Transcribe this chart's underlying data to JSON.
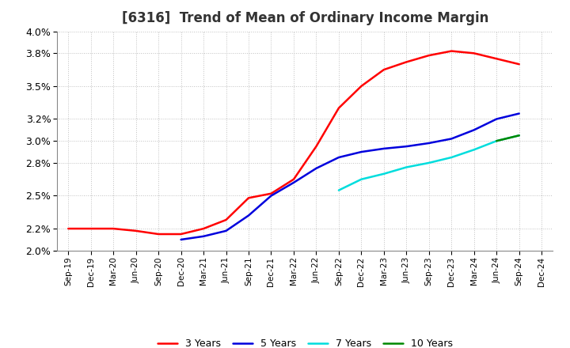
{
  "title": "[6316]  Trend of Mean of Ordinary Income Margin",
  "ylim": [
    0.02,
    0.04
  ],
  "ytick_positions": [
    0.02,
    0.022,
    0.025,
    0.028,
    0.03,
    0.032,
    0.035,
    0.038,
    0.04
  ],
  "ytick_labels": [
    "2.0%",
    "2.2%",
    "2.5%",
    "2.8%",
    "3.0%",
    "3.2%",
    "3.5%",
    "3.8%",
    "4.0%"
  ],
  "x_labels": [
    "Sep-19",
    "Dec-19",
    "Mar-20",
    "Jun-20",
    "Sep-20",
    "Dec-20",
    "Mar-21",
    "Jun-21",
    "Sep-21",
    "Dec-21",
    "Mar-22",
    "Jun-22",
    "Sep-22",
    "Dec-22",
    "Mar-23",
    "Jun-23",
    "Sep-23",
    "Dec-23",
    "Mar-24",
    "Jun-24",
    "Sep-24",
    "Dec-24"
  ],
  "series": {
    "3 Years": {
      "color": "#ff0000",
      "values": [
        0.022,
        0.022,
        0.022,
        0.0218,
        0.0215,
        0.0215,
        0.022,
        0.0228,
        0.0248,
        0.0252,
        0.0265,
        0.0295,
        0.033,
        0.035,
        0.0365,
        0.0372,
        0.0378,
        0.0382,
        0.038,
        0.0375,
        0.037,
        null
      ]
    },
    "5 Years": {
      "color": "#0000dd",
      "values": [
        null,
        null,
        null,
        null,
        null,
        0.021,
        0.0213,
        0.0218,
        0.0232,
        0.025,
        0.0262,
        0.0275,
        0.0285,
        0.029,
        0.0293,
        0.0295,
        0.0298,
        0.0302,
        0.031,
        0.032,
        0.0325,
        null
      ]
    },
    "7 Years": {
      "color": "#00dddd",
      "values": [
        null,
        null,
        null,
        null,
        null,
        null,
        null,
        null,
        null,
        null,
        null,
        null,
        0.0255,
        0.0265,
        0.027,
        0.0276,
        0.028,
        0.0285,
        0.0292,
        0.03,
        0.0305,
        null
      ]
    },
    "10 Years": {
      "color": "#008800",
      "values": [
        null,
        null,
        null,
        null,
        null,
        null,
        null,
        null,
        null,
        null,
        null,
        null,
        null,
        null,
        null,
        null,
        null,
        null,
        null,
        0.03,
        0.0305,
        null
      ]
    }
  },
  "background_color": "#ffffff",
  "grid_color": "#c0c0c0",
  "title_fontsize": 12,
  "legend_ncol": 4,
  "line_width": 1.8
}
